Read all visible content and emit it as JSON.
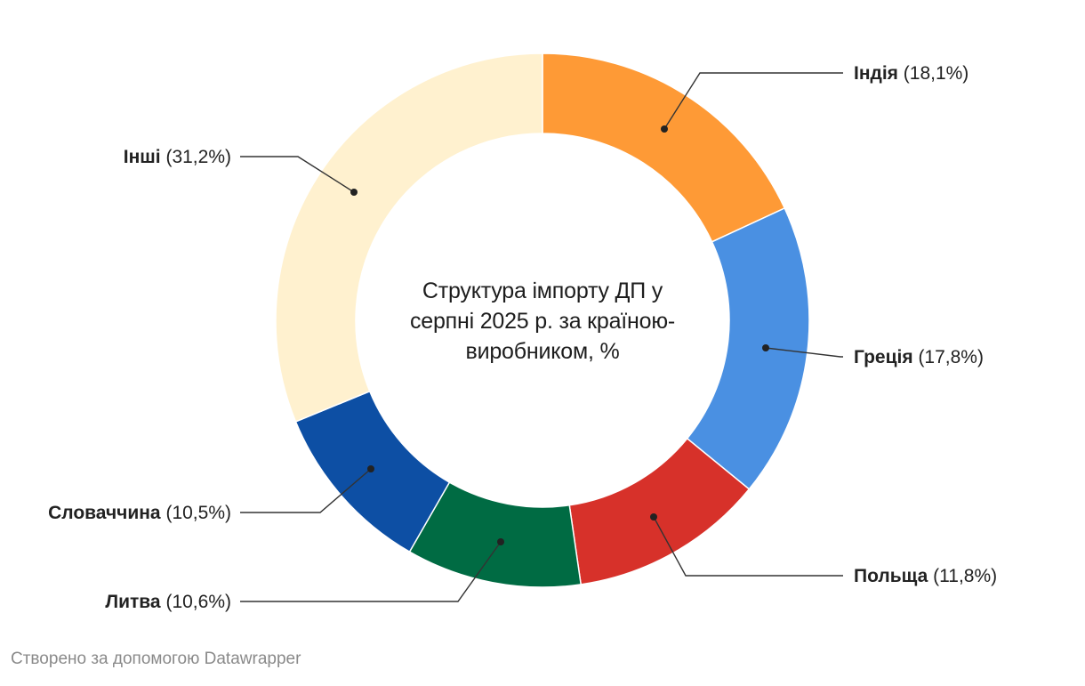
{
  "chart_data": {
    "type": "pie",
    "variant": "donut",
    "title": "Структура імпорту ДП у серпні 2025 р. за країною-виробником, %",
    "title_lines": [
      "Структура імпорту ДП у",
      "серпні 2025 р. за країною-",
      "виробником, %"
    ],
    "slices": [
      {
        "label": "Індія",
        "value_text": "(18,1%)",
        "value": 18.1,
        "color": "#fe9a36"
      },
      {
        "label": "Греція",
        "value_text": "(17,8%)",
        "value": 17.8,
        "color": "#4a90e2"
      },
      {
        "label": "Польща",
        "value_text": "(11,8%)",
        "value": 11.8,
        "color": "#d7312a"
      },
      {
        "label": "Литва",
        "value_text": "(10,6%)",
        "value": 10.6,
        "color": "#006b43"
      },
      {
        "label": "Словаччина",
        "value_text": "(10,5%)",
        "value": 10.5,
        "color": "#0d4fa4"
      },
      {
        "label": "Інші",
        "value_text": "(31,2%)",
        "value": 31.2,
        "color": "#fff1cf"
      }
    ]
  },
  "footer": {
    "credit": "Створено за допомогою Datawrapper"
  }
}
